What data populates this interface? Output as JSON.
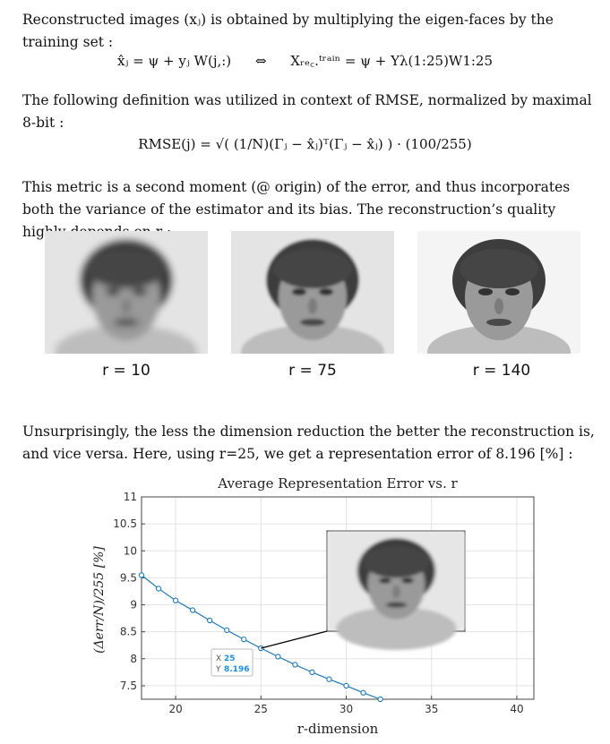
{
  "paragraphs": {
    "p1": "Reconstructed images (xⱼ) is obtained by multiplying the eigen-faces by the training set :",
    "p2": "The following definition was utilized in context of RMSE, normalized by maximal 8-bit :",
    "p3": "This metric is a second moment (@ origin) of the error, and thus incorporates both the variance of the estimator and its bias. The reconstruction’s quality highly depends on r :",
    "p4": "Unsurprisingly, the less the dimension reduction the better the reconstruction is, and vice versa. Here, using r=25, we get a representation error of 8.196 [%] :"
  },
  "equations": {
    "eq1_left": "x̂ⱼ = ψ + yⱼ W(j,:)",
    "eq1_sep": "⇔",
    "eq1_right": "Xᵣₑ꜀.ᵗʳᵃⁱⁿ = ψ + Yλ(1:25)W1:25",
    "rmse": "RMSE(j) = √( (1/N)(Γⱼ − x̂ⱼ)ᵀ(Γⱼ − x̂ⱼ) ) · (100/255)"
  },
  "faces": [
    {
      "caption": "r = 10",
      "blur": 4
    },
    {
      "caption": "r = 75",
      "blur": 1.6
    },
    {
      "caption": "r = 140",
      "blur": 0.3
    }
  ],
  "chart_data": {
    "type": "line",
    "title": "Average Representation Error vs. r",
    "xlabel": "r-dimension",
    "ylabel": "(Δerr/N)/255 [%]",
    "xlim": [
      18,
      41
    ],
    "ylim": [
      7.25,
      11
    ],
    "xticks": [
      20,
      25,
      30,
      35,
      40
    ],
    "yticks": [
      7.5,
      8,
      8.5,
      9,
      9.5,
      10,
      10.5,
      11
    ],
    "x": [
      18,
      19,
      20,
      21,
      22,
      23,
      24,
      25,
      26,
      27,
      28,
      29,
      30,
      31,
      32
    ],
    "y": [
      9.55,
      9.3,
      9.08,
      8.9,
      8.71,
      8.53,
      8.36,
      8.196,
      8.04,
      7.89,
      7.75,
      7.62,
      7.5,
      7.37,
      7.25
    ],
    "series_color": "#1f77b4",
    "grid": true,
    "datatip": {
      "x_label": "X",
      "x_value": "25",
      "y_label": "Y",
      "y_value": "8.196"
    }
  }
}
